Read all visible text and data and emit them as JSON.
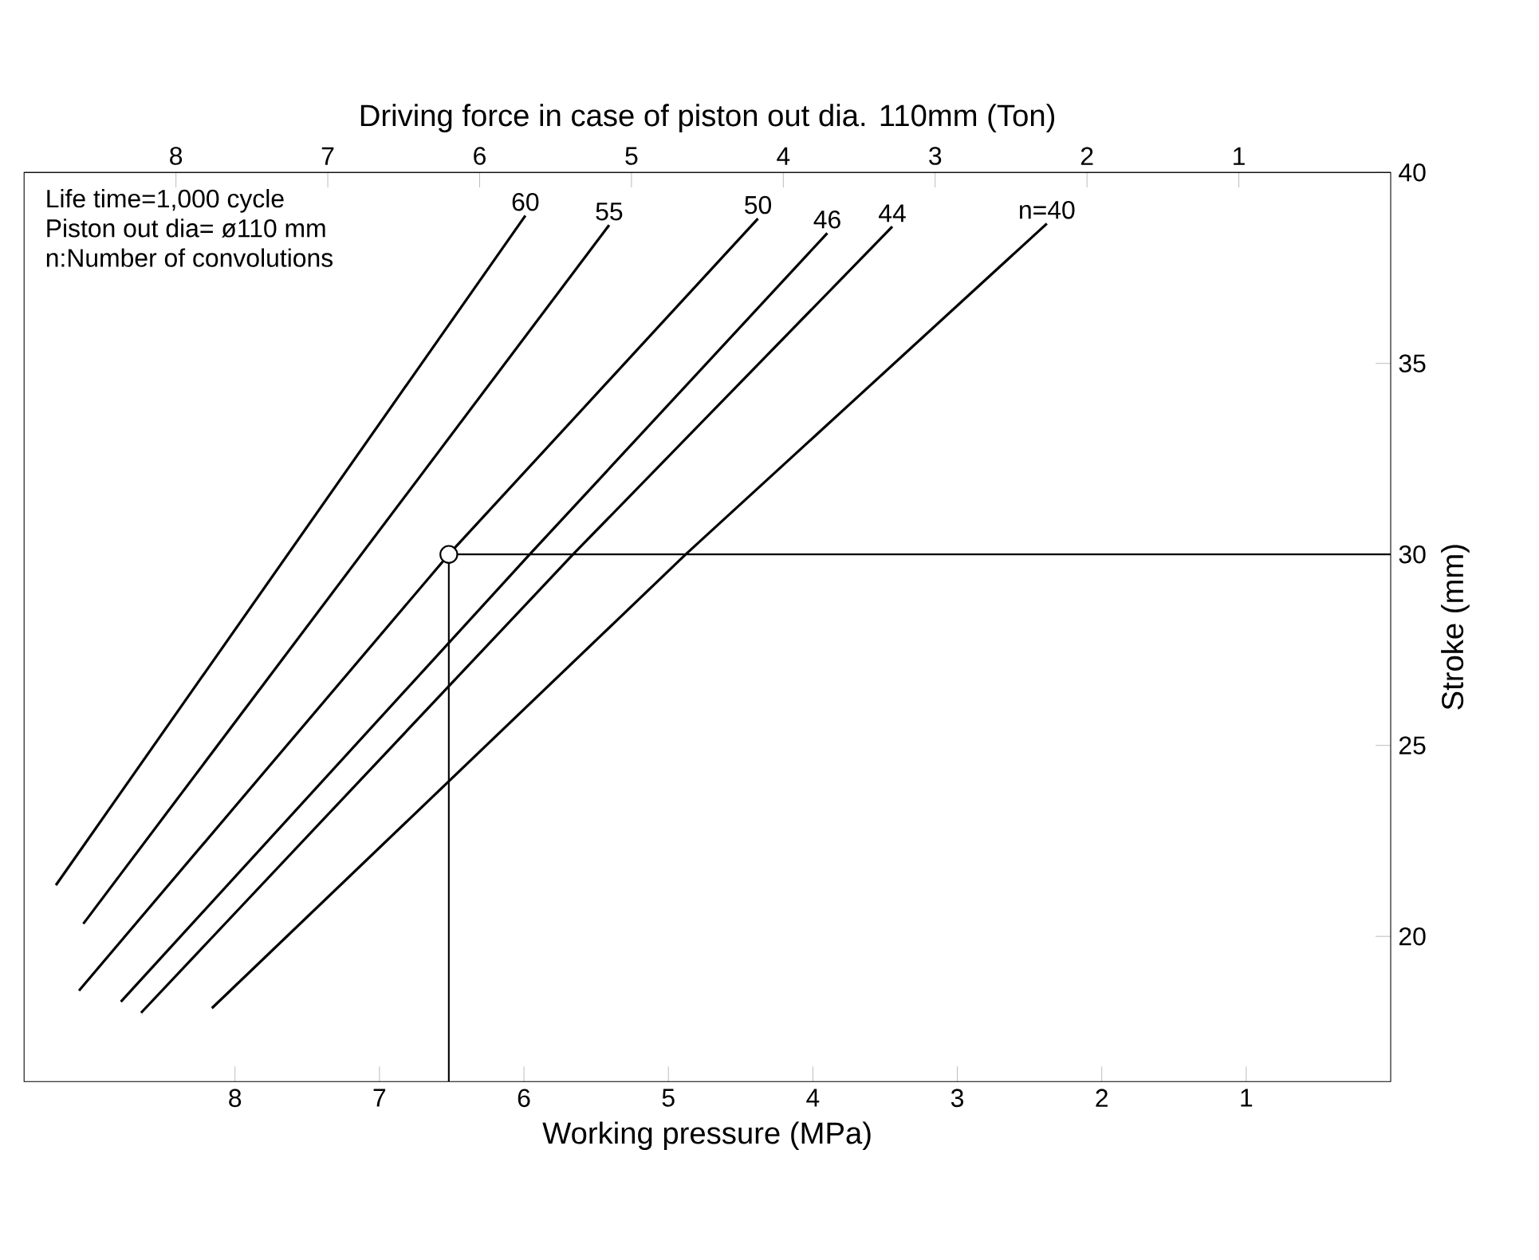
{
  "chart_data": {
    "type": "line",
    "xlabel": "Working pressure (MPa)",
    "x2label": "Driving force in case of piston out dia. 110mm (Ton)",
    "ylabel": "Stroke (mm)",
    "xlim": [
      9.46,
      0
    ],
    "xticks": [
      1,
      2,
      3,
      4,
      5,
      6,
      7,
      8
    ],
    "x2lim": [
      9.0,
      0
    ],
    "x2ticks": [
      1,
      2,
      3,
      4,
      5,
      6,
      7,
      8
    ],
    "ylim": [
      16.2,
      40
    ],
    "yticks": [
      20,
      25,
      30,
      35,
      40
    ],
    "grid": false,
    "legend": false,
    "marker": "none",
    "line_style": "solid",
    "annotations": [
      "Life time=1,000 cycle",
      "Piston out dia= ø110 mm",
      "n:Number of convolutions"
    ],
    "series": [
      {
        "name": "60",
        "color": "#000000",
        "x": [
          9.24,
          5.99
        ],
        "values": [
          21.34,
          38.87
        ]
      },
      {
        "name": "55",
        "color": "#000000",
        "x": [
          9.05,
          5.41
        ],
        "values": [
          20.33,
          38.62
        ]
      },
      {
        "name": "50",
        "color": "#000000",
        "x": [
          9.08,
          6.52,
          4.38
        ],
        "values": [
          18.58,
          30,
          38.79
        ]
      },
      {
        "name": "46",
        "color": "#000000",
        "x": [
          8.79,
          5.96,
          3.9
        ],
        "values": [
          18.29,
          30,
          38.41
        ]
      },
      {
        "name": "44",
        "color": "#000000",
        "x": [
          8.65,
          5.66,
          3.45
        ],
        "values": [
          18.0,
          30,
          38.58
        ]
      },
      {
        "name": "n=40",
        "color": "#000000",
        "x": [
          8.16,
          4.88,
          2.38
        ],
        "values": [
          18.12,
          30,
          38.66
        ]
      },
      {
        "color": "#000000",
        "x": [
          6.52,
          6.52,
          0
        ],
        "values": [
          16.2,
          30,
          30
        ]
      },
      {
        "type": "scatter",
        "marker": "circle",
        "color": "#000000",
        "x": [
          6.52
        ],
        "values": [
          30
        ]
      }
    ]
  }
}
